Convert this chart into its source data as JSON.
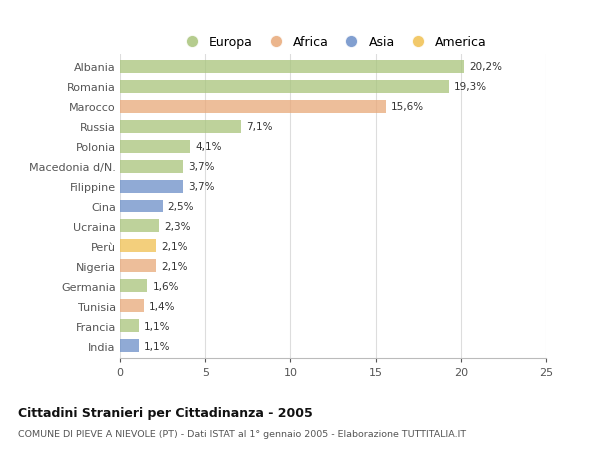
{
  "categories": [
    "Albania",
    "Romania",
    "Marocco",
    "Russia",
    "Polonia",
    "Macedonia d/N.",
    "Filippine",
    "Cina",
    "Ucraina",
    "Perù",
    "Nigeria",
    "Germania",
    "Tunisia",
    "Francia",
    "India"
  ],
  "values": [
    20.2,
    19.3,
    15.6,
    7.1,
    4.1,
    3.7,
    3.7,
    2.5,
    2.3,
    2.1,
    2.1,
    1.6,
    1.4,
    1.1,
    1.1
  ],
  "labels": [
    "20,2%",
    "19,3%",
    "15,6%",
    "7,1%",
    "4,1%",
    "3,7%",
    "3,7%",
    "2,5%",
    "2,3%",
    "2,1%",
    "2,1%",
    "1,6%",
    "1,4%",
    "1,1%",
    "1,1%"
  ],
  "continents": [
    "Europa",
    "Europa",
    "Africa",
    "Europa",
    "Europa",
    "Europa",
    "Asia",
    "Asia",
    "Europa",
    "America",
    "Africa",
    "Europa",
    "Africa",
    "Europa",
    "Asia"
  ],
  "colors": {
    "Europa": "#a8c47a",
    "Africa": "#e8a878",
    "Asia": "#6b8ec8",
    "America": "#f0c050"
  },
  "xlim": [
    0,
    25
  ],
  "xticks": [
    0,
    5,
    10,
    15,
    20,
    25
  ],
  "title": "Cittadini Stranieri per Cittadinanza - 2005",
  "subtitle": "COMUNE DI PIEVE A NIEVOLE (PT) - Dati ISTAT al 1° gennaio 2005 - Elaborazione TUTTITALIA.IT",
  "background_color": "#ffffff",
  "grid_color": "#dddddd",
  "bar_height": 0.65,
  "legend_order": [
    "Europa",
    "Africa",
    "Asia",
    "America"
  ]
}
